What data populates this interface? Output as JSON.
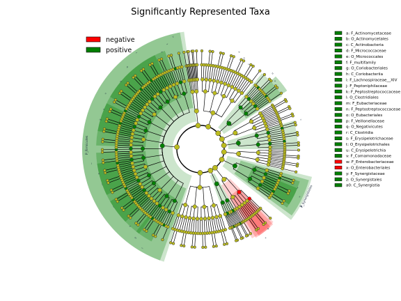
{
  "chart_data": {
    "type": "cladogram",
    "title": "Significantly Represented Taxa",
    "legend": [
      {
        "name": "negative",
        "color": "#ff0000"
      },
      {
        "name": "positive",
        "color": "#007f00"
      }
    ],
    "legend_placement": "top-left",
    "colors": {
      "positive": "#007f00",
      "negative": "#ff0000",
      "neutral": "#bcbc1f"
    },
    "taxa": [
      {
        "key": "a",
        "label": "a: F_Actinomycetaceae",
        "group": "positive"
      },
      {
        "key": "b",
        "label": "b: O_Actinomycetales",
        "group": "positive"
      },
      {
        "key": "c",
        "label": "c: C_Actinobacteria",
        "group": "positive"
      },
      {
        "key": "d",
        "label": "d: F_Micrococcaceae",
        "group": "positive"
      },
      {
        "key": "e",
        "label": "e: O_Micrococcales",
        "group": "positive"
      },
      {
        "key": "f",
        "label": "f: F_multifamily",
        "group": "positive"
      },
      {
        "key": "g",
        "label": "g: O_Coriobacteriales",
        "group": "positive"
      },
      {
        "key": "h",
        "label": "h: C_Coriobacteriia",
        "group": "positive"
      },
      {
        "key": "i",
        "label": "i: F_Lachnospiraceae__XIV",
        "group": "positive"
      },
      {
        "key": "j",
        "label": "j: F_Peptoniphilaceae",
        "group": "positive"
      },
      {
        "key": "k",
        "label": "k: F_Peptostreptococcaceae",
        "group": "positive"
      },
      {
        "key": "l",
        "label": "l: O_Clostridiales",
        "group": "positive"
      },
      {
        "key": "m",
        "label": "m: F_Eubacteriaceae",
        "group": "positive"
      },
      {
        "key": "n",
        "label": "n: F_Peptostreptococcaceae",
        "group": "positive"
      },
      {
        "key": "o",
        "label": "o: O_Eubacteriales",
        "group": "positive"
      },
      {
        "key": "p",
        "label": "p: F_Veillonellaceae",
        "group": "positive"
      },
      {
        "key": "q",
        "label": "q: O_Negativicutes",
        "group": "positive"
      },
      {
        "key": "r",
        "label": "r: C_Clostridia",
        "group": "positive"
      },
      {
        "key": "s",
        "label": "s: F_Erysipelotrichaceae",
        "group": "positive"
      },
      {
        "key": "t",
        "label": "t: O_Erysipelotrichales",
        "group": "positive"
      },
      {
        "key": "u",
        "label": "u: C_Erysipelotrichia",
        "group": "positive"
      },
      {
        "key": "v",
        "label": "v: F_Comamonadaceae",
        "group": "positive"
      },
      {
        "key": "w",
        "label": "w: F_Enterobacteriaceae",
        "group": "negative"
      },
      {
        "key": "x",
        "label": "x: O_Enterobacteriales",
        "group": "negative"
      },
      {
        "key": "y",
        "label": "y: F_Synergistaceae",
        "group": "positive"
      },
      {
        "key": "z",
        "label": "z: O_Synergistales",
        "group": "positive"
      },
      {
        "key": "a0",
        "label": "a0: C_Synergistia",
        "group": "positive"
      }
    ],
    "phylum_labels": [
      {
        "text": "P_Firmicutes"
      },
      {
        "text": "P_Synergistetes"
      }
    ]
  }
}
